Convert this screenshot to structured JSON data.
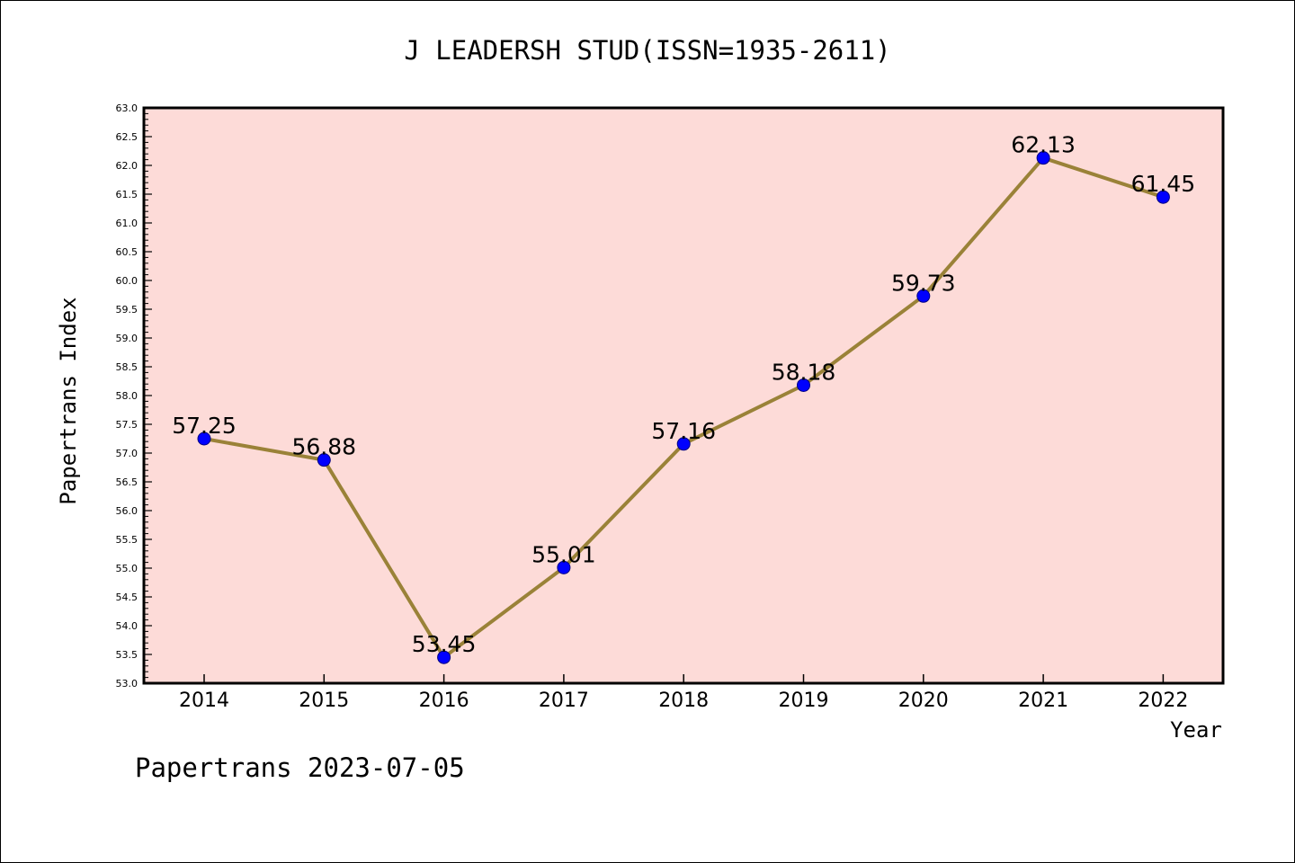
{
  "chart_data": {
    "type": "line",
    "title": "J LEADERSH STUD(ISSN=1935-2611)",
    "xlabel": "Year",
    "ylabel": "Papertrans Index",
    "categories": [
      "2014",
      "2015",
      "2016",
      "2017",
      "2018",
      "2019",
      "2020",
      "2021",
      "2022"
    ],
    "series": [
      {
        "values": [
          57.25,
          56.88,
          53.45,
          55.01,
          57.16,
          58.18,
          59.73,
          62.13,
          61.45
        ],
        "labels": [
          "57.25",
          "56.88",
          "53.45",
          "55.01",
          "57.16",
          "58.18",
          "59.73",
          "62.13",
          "61.45"
        ]
      }
    ],
    "ylim": [
      53.0,
      63.0
    ],
    "yticks": [
      "53.0",
      "53.5",
      "54.0",
      "54.5",
      "55.0",
      "55.5",
      "56.0",
      "56.5",
      "57.0",
      "57.5",
      "58.0",
      "58.5",
      "59.0",
      "59.5",
      "60.0",
      "60.5",
      "61.0",
      "61.5",
      "62.0",
      "62.5",
      "63.0"
    ],
    "grid": false,
    "colors": {
      "plot_background": "#fddbd8",
      "line": "#9a8238",
      "marker": "#0000ff"
    }
  },
  "footer": "Papertrans 2023-07-05"
}
